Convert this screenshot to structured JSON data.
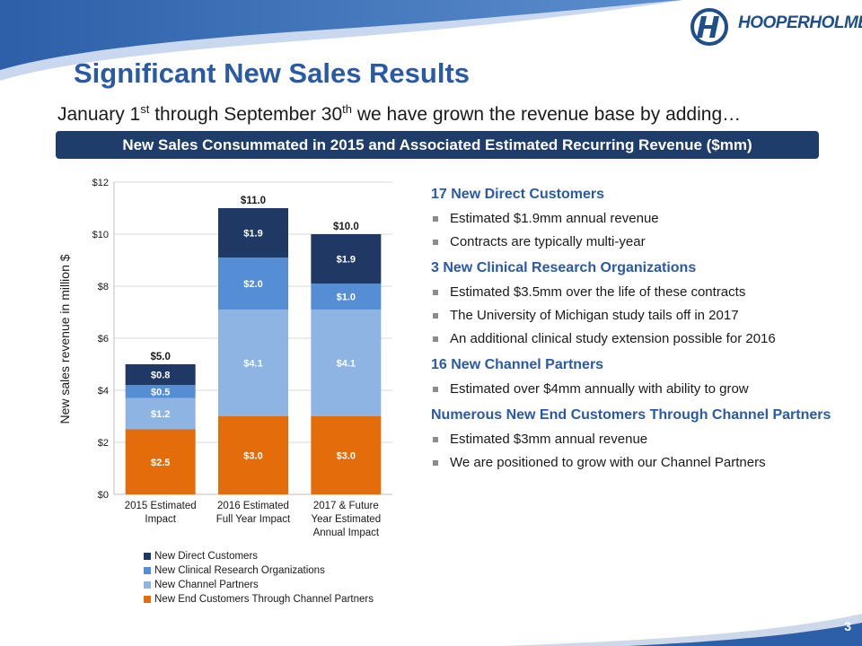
{
  "header": {
    "logo_text": "HOOPERHOLMES",
    "title": "Significant New Sales Results",
    "subtitle_parts": [
      "January 1",
      "st",
      " through September 30",
      "th",
      " we have grown the revenue base by adding…"
    ],
    "banner": "New Sales Consummated in 2015 and Associated Estimated Recurring Revenue ($mm)"
  },
  "chart_data": {
    "type": "bar",
    "stacked": true,
    "categories": [
      [
        "2015 Estimated",
        "Impact"
      ],
      [
        "2016 Estimated",
        "Full Year Impact"
      ],
      [
        "2017 & Future",
        "Year Estimated",
        "Annual Impact"
      ]
    ],
    "series": [
      {
        "name": "New End Customers Through Channel Partners",
        "color": "#e46c0a",
        "values": [
          2.5,
          3.0,
          3.0
        ],
        "labels": [
          "$2.5",
          "$3.0",
          "$3.0"
        ]
      },
      {
        "name": "New Channel Partners",
        "color": "#8db4e2",
        "values": [
          1.2,
          4.1,
          4.1
        ],
        "labels": [
          "$1.2",
          "$4.1",
          "$4.1"
        ]
      },
      {
        "name": "New Clinical Research Organizations",
        "color": "#558ed5",
        "values": [
          0.5,
          2.0,
          1.0
        ],
        "labels": [
          "$0.5",
          "$2.0",
          "$1.0"
        ]
      },
      {
        "name": "New Direct Customers",
        "color": "#1f3864",
        "values": [
          0.8,
          1.9,
          1.9
        ],
        "labels": [
          "$0.8",
          "$1.9",
          "$1.9"
        ]
      }
    ],
    "totals": [
      "$5.0",
      "$11.0",
      "$10.0"
    ],
    "ylabel": "New sales revenue in million $",
    "ylim": [
      0,
      12
    ],
    "yticks": [
      0,
      2,
      4,
      6,
      8,
      10,
      12
    ],
    "ytick_labels": [
      "$0",
      "$2",
      "$4",
      "$6",
      "$8",
      "$10",
      "$12"
    ],
    "legend_order": [
      "New Direct Customers",
      "New Clinical Research Organizations",
      "New Channel Partners",
      "New End Customers Through Channel Partners"
    ],
    "legend_colors": [
      "#1f3864",
      "#558ed5",
      "#8db4e2",
      "#e46c0a"
    ],
    "legend_position": "bottom"
  },
  "sections": [
    {
      "title": "17 New Direct Customers",
      "bullets": [
        "Estimated $1.9mm annual revenue",
        "Contracts are typically multi-year"
      ]
    },
    {
      "title": "3 New Clinical Research Organizations",
      "bullets": [
        "Estimated $3.5mm over the life of these contracts",
        "The University of Michigan study tails off in 2017",
        "An additional clinical study extension possible for 2016"
      ]
    },
    {
      "title": "16 New Channel Partners",
      "bullets": [
        "Estimated  over $4mm annually with ability to grow"
      ]
    },
    {
      "title": "Numerous New End Customers Through Channel Partners",
      "bullets": [
        "Estimated $3mm annual revenue",
        "We are positioned to grow with our Channel Partners"
      ]
    }
  ],
  "footer": {
    "page_number": "3"
  },
  "colors": {
    "accent_blue": "#2a5aa6",
    "banner": "#1f3d6b",
    "header_swoosh": "#1f4e8c"
  }
}
